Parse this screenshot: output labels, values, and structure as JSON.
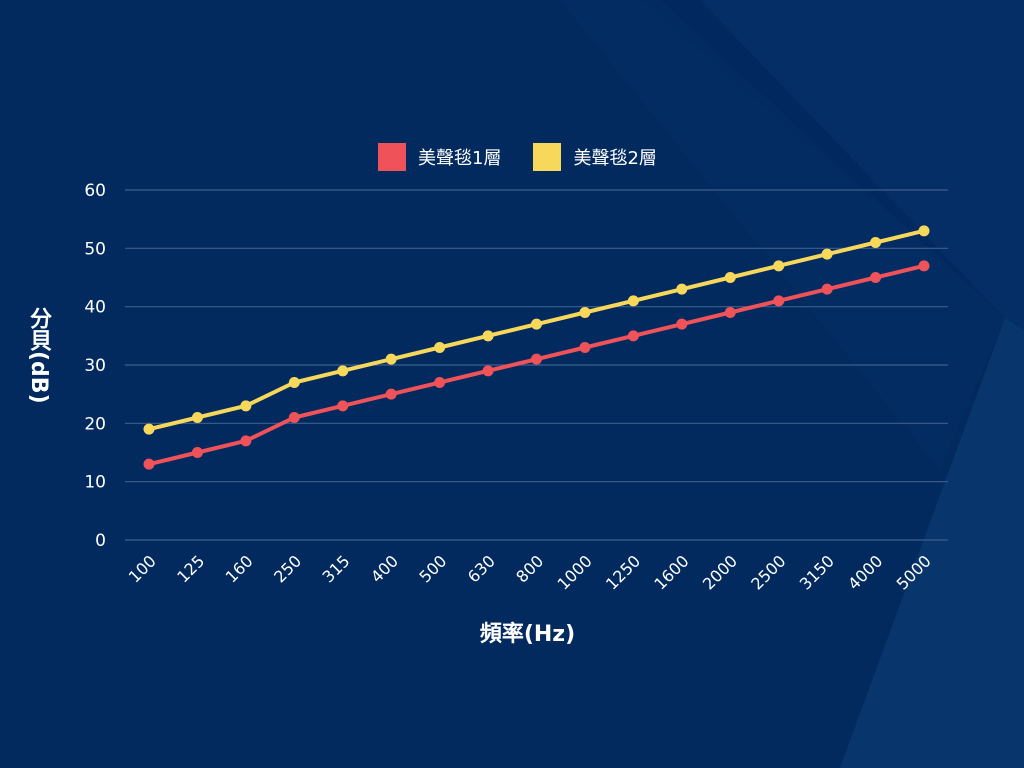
{
  "colors": {
    "background": "#032a5e",
    "gridline": "#3d5f8f",
    "series1": "#f0525a",
    "series2": "#f7d85a",
    "text": "#ffffff"
  },
  "legend": {
    "items": [
      {
        "label": "美聲毯1層",
        "color": "#f0525a"
      },
      {
        "label": "美聲毯2層",
        "color": "#f7d85a"
      }
    ]
  },
  "axes": {
    "xlabel": "頻率(Hz)",
    "ylabel": "分貝(dB)"
  },
  "chart_data": {
    "type": "line",
    "title": "",
    "xlabel": "頻率(Hz)",
    "ylabel": "分貝(dB)",
    "categories": [
      "100",
      "125",
      "160",
      "250",
      "315",
      "400",
      "500",
      "630",
      "800",
      "1000",
      "1250",
      "1600",
      "2000",
      "2500",
      "3150",
      "4000",
      "5000"
    ],
    "series": [
      {
        "name": "美聲毯1層",
        "color": "#f0525a",
        "values": [
          13,
          15,
          17,
          21,
          23,
          25,
          27,
          29,
          31,
          33,
          35,
          37,
          39,
          41,
          43,
          45,
          47
        ]
      },
      {
        "name": "美聲毯2層",
        "color": "#f7d85a",
        "values": [
          19,
          21,
          23,
          27,
          29,
          31,
          33,
          35,
          37,
          39,
          41,
          43,
          45,
          47,
          49,
          51,
          53
        ]
      }
    ],
    "ylim": [
      0,
      60
    ],
    "yticks": [
      0,
      10,
      20,
      30,
      40,
      50,
      60
    ],
    "grid": true,
    "legend_position": "top"
  }
}
